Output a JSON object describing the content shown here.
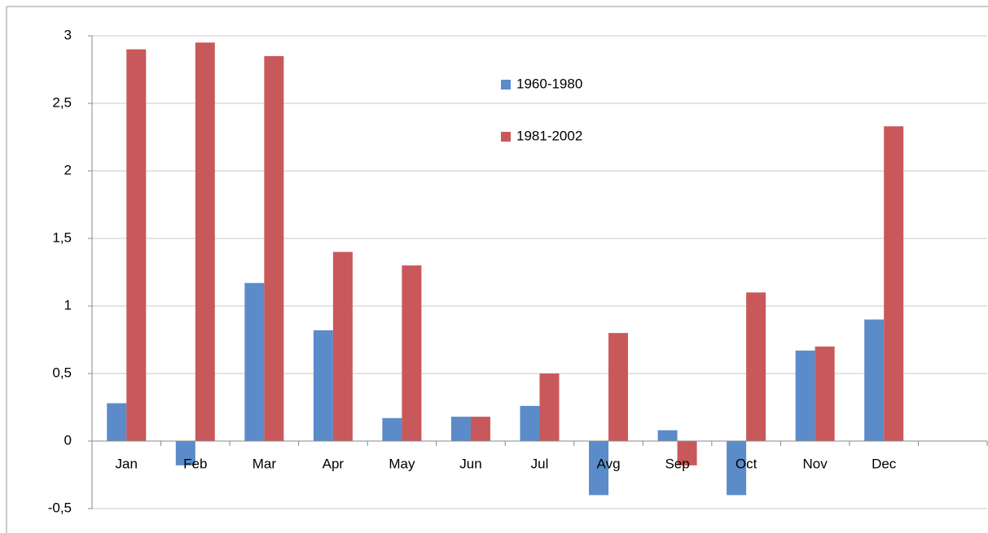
{
  "chart_data": {
    "type": "bar",
    "categories": [
      "Jan",
      "Feb",
      "Mar",
      "Apr",
      "May",
      "Jun",
      "Jul",
      "Avg",
      "Sep",
      "Oct",
      "Nov",
      "Dec",
      null
    ],
    "series": [
      {
        "name": "1960-1980",
        "color": "#5b8bc9",
        "values": [
          0.28,
          -0.18,
          1.17,
          0.82,
          0.17,
          0.18,
          0.26,
          -0.4,
          0.08,
          -0.4,
          0.67,
          0.9,
          null
        ]
      },
      {
        "name": "1981-2002",
        "color": "#c9585a",
        "values": [
          2.9,
          2.95,
          2.85,
          1.4,
          1.3,
          0.18,
          0.5,
          0.8,
          -0.18,
          1.1,
          0.7,
          2.33,
          null
        ]
      }
    ],
    "ylim": [
      -0.5,
      3
    ],
    "yticks": [
      {
        "value": -0.5,
        "label": "-0,5"
      },
      0,
      {
        "value": 0.5,
        "label": "0,5"
      },
      1,
      {
        "value": 1.5,
        "label": "1,5"
      },
      2,
      {
        "value": 2.5,
        "label": "2,5"
      },
      3
    ],
    "grid": true,
    "legend": "top-center"
  }
}
